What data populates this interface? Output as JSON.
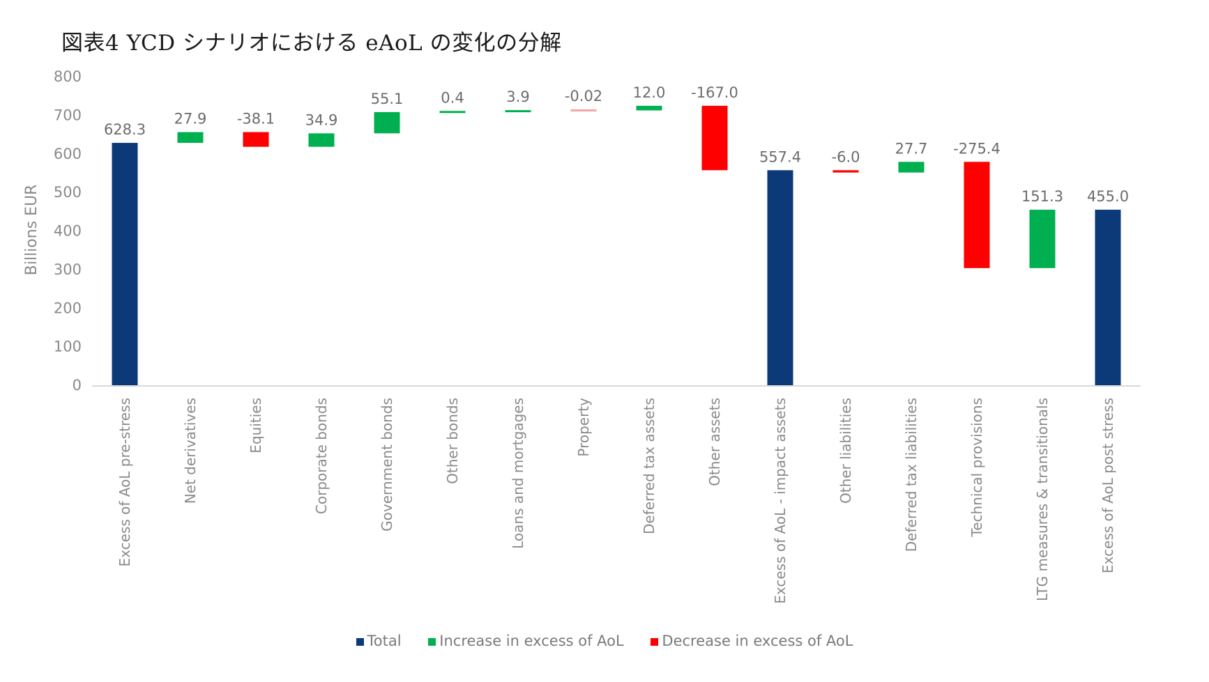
{
  "title": "図表4  YCD シナリオにおける eAoL の変化の分解",
  "colors": {
    "total": "#0c3a78",
    "increase": "#00b050",
    "decrease": "#ff0000",
    "axis": "#d9d9d9"
  },
  "chart_data": {
    "type": "bar",
    "subtype": "waterfall",
    "ylabel": "Billions EUR",
    "ylim": [
      0,
      800
    ],
    "yticks": [
      "0",
      "100",
      "200",
      "300",
      "400",
      "500",
      "600",
      "700",
      "800"
    ],
    "grid": false,
    "legend_position": "bottom",
    "legend": [
      {
        "key": "total",
        "label": "Total"
      },
      {
        "key": "increase",
        "label": "Increase in excess of AoL"
      },
      {
        "key": "decrease",
        "label": "Decrease in excess of AoL"
      }
    ],
    "bars": [
      {
        "category": "Excess of AoL pre-stress",
        "label": "628.3",
        "kind": "total",
        "start": 0,
        "end": 628.3
      },
      {
        "category": "Net derivatives",
        "label": "27.9",
        "kind": "increase",
        "start": 628.3,
        "end": 656.2
      },
      {
        "category": "Equities",
        "label": "-38.1",
        "kind": "decrease",
        "start": 656.2,
        "end": 618.1
      },
      {
        "category": "Corporate bonds",
        "label": "34.9",
        "kind": "increase",
        "start": 618.1,
        "end": 653.0
      },
      {
        "category": "Government bonds",
        "label": "55.1",
        "kind": "increase",
        "start": 653.0,
        "end": 708.1
      },
      {
        "category": "Other bonds",
        "label": "0.4",
        "kind": "increase",
        "start": 708.1,
        "end": 708.5
      },
      {
        "category": "Loans and mortgages",
        "label": "3.9",
        "kind": "increase",
        "start": 708.5,
        "end": 712.4
      },
      {
        "category": "Property",
        "label": "-0.02",
        "kind": "decrease",
        "start": 712.4,
        "end": 712.38
      },
      {
        "category": "Deferred tax assets",
        "label": "12.0",
        "kind": "increase",
        "start": 712.4,
        "end": 724.4
      },
      {
        "category": "Other assets",
        "label": "-167.0",
        "kind": "decrease",
        "start": 724.4,
        "end": 557.4
      },
      {
        "category": "Excess  of AoL - impact assets",
        "label": "557.4",
        "kind": "total",
        "start": 0,
        "end": 557.4
      },
      {
        "category": "Other liabilities",
        "label": "-6.0",
        "kind": "decrease",
        "start": 557.4,
        "end": 551.4
      },
      {
        "category": "Deferred tax liabilities",
        "label": "27.7",
        "kind": "increase",
        "start": 551.4,
        "end": 579.1
      },
      {
        "category": "Technical provisions",
        "label": "-275.4",
        "kind": "decrease",
        "start": 579.1,
        "end": 303.7
      },
      {
        "category": "LTG measures & transitionals",
        "label": "151.3",
        "kind": "increase",
        "start": 303.7,
        "end": 455.0
      },
      {
        "category": "Excess of AoL post stress",
        "label": "455.0",
        "kind": "total",
        "start": 0,
        "end": 455.0
      }
    ]
  }
}
